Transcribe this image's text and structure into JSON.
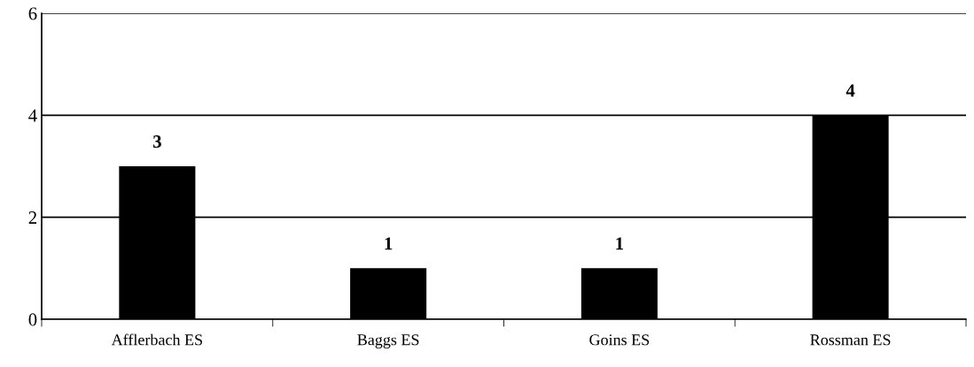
{
  "chart_data": {
    "type": "bar",
    "categories": [
      "Afflerbach ES",
      "Baggs ES",
      "Goins ES",
      "Rossman ES"
    ],
    "values": [
      3,
      1,
      1,
      4
    ],
    "color": "#000000",
    "ylim": [
      0,
      6
    ],
    "yticks": [
      0,
      2,
      4,
      6
    ],
    "grid": "y",
    "data_labels": true
  }
}
